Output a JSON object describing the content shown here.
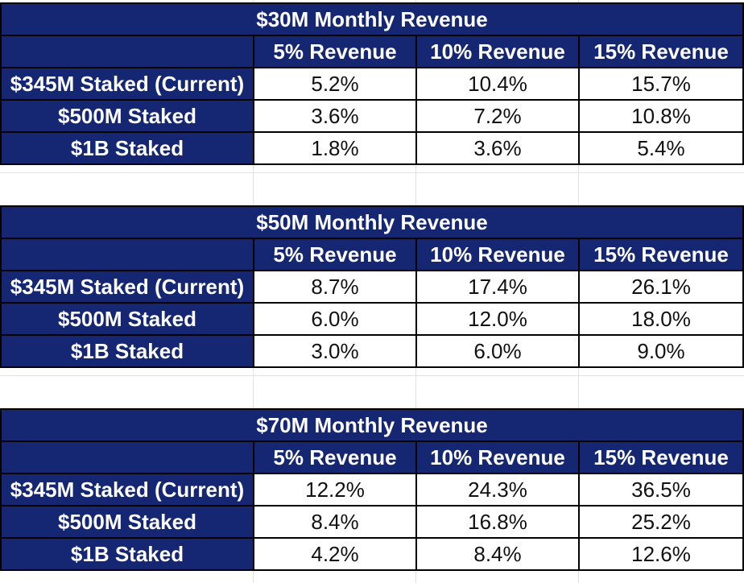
{
  "colors": {
    "header_bg": "#152673",
    "header_text": "#ffffff",
    "cell_bg": "#ffffff",
    "border": "#000000"
  },
  "tables": [
    {
      "title": "$30M Monthly Revenue",
      "columns": [
        "5% Revenue",
        "10% Revenue",
        "15% Revenue"
      ],
      "rows": [
        {
          "label": "$345M Staked (Current)",
          "values": [
            "5.2%",
            "10.4%",
            "15.7%"
          ]
        },
        {
          "label": "$500M Staked",
          "values": [
            "3.6%",
            "7.2%",
            "10.8%"
          ]
        },
        {
          "label": "$1B Staked",
          "values": [
            "1.8%",
            "3.6%",
            "5.4%"
          ]
        }
      ]
    },
    {
      "title": "$50M Monthly Revenue",
      "columns": [
        "5% Revenue",
        "10% Revenue",
        "15% Revenue"
      ],
      "rows": [
        {
          "label": "$345M Staked (Current)",
          "values": [
            "8.7%",
            "17.4%",
            "26.1%"
          ]
        },
        {
          "label": "$500M Staked",
          "values": [
            "6.0%",
            "12.0%",
            "18.0%"
          ]
        },
        {
          "label": "$1B Staked",
          "values": [
            "3.0%",
            "6.0%",
            "9.0%"
          ]
        }
      ]
    },
    {
      "title": "$70M Monthly Revenue",
      "columns": [
        "5% Revenue",
        "10% Revenue",
        "15% Revenue"
      ],
      "rows": [
        {
          "label": "$345M Staked (Current)",
          "values": [
            "12.2%",
            "24.3%",
            "36.5%"
          ]
        },
        {
          "label": "$500M Staked",
          "values": [
            "8.4%",
            "16.8%",
            "25.2%"
          ]
        },
        {
          "label": "$1B Staked",
          "values": [
            "4.2%",
            "8.4%",
            "12.6%"
          ]
        }
      ]
    }
  ]
}
